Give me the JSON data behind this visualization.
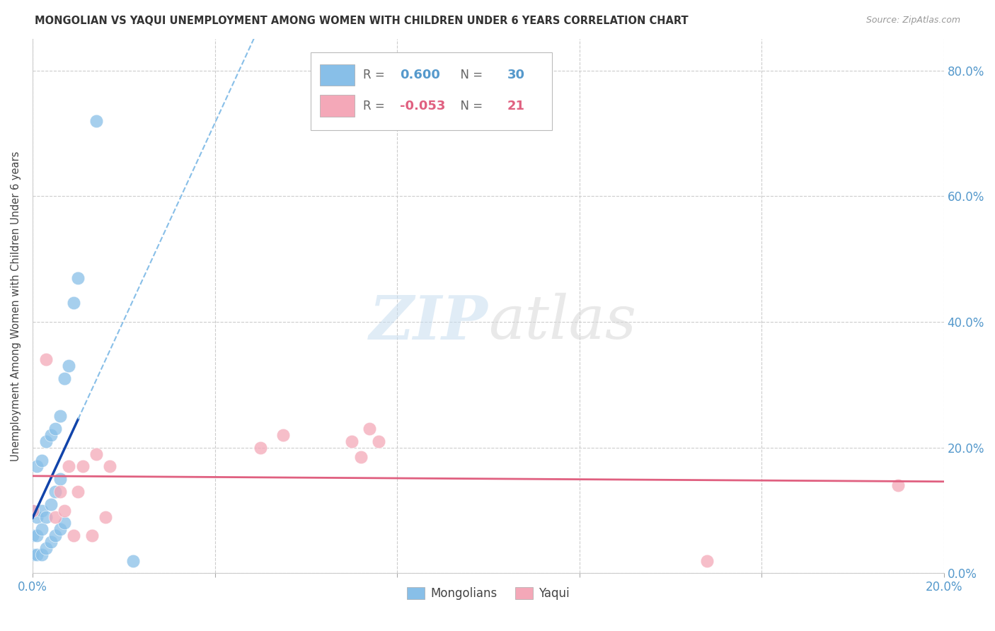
{
  "title": "MONGOLIAN VS YAQUI UNEMPLOYMENT AMONG WOMEN WITH CHILDREN UNDER 6 YEARS CORRELATION CHART",
  "source": "Source: ZipAtlas.com",
  "ylabel": "Unemployment Among Women with Children Under 6 years",
  "xlim": [
    0.0,
    0.2
  ],
  "ylim": [
    0.0,
    0.85
  ],
  "mongolian_color": "#88bfe8",
  "yaqui_color": "#f4a8b8",
  "mongolian_line_color": "#1144aa",
  "mongolian_dash_color": "#88bfe8",
  "yaqui_line_color": "#e06080",
  "mongolian_R": 0.6,
  "mongolian_N": 30,
  "yaqui_R": -0.053,
  "yaqui_N": 21,
  "mongolian_x": [
    0.0,
    0.0,
    0.0,
    0.001,
    0.001,
    0.001,
    0.001,
    0.002,
    0.002,
    0.002,
    0.002,
    0.003,
    0.003,
    0.003,
    0.004,
    0.004,
    0.004,
    0.005,
    0.005,
    0.005,
    0.006,
    0.006,
    0.006,
    0.007,
    0.007,
    0.008,
    0.009,
    0.01,
    0.014,
    0.022
  ],
  "mongolian_y": [
    0.03,
    0.06,
    0.1,
    0.03,
    0.06,
    0.09,
    0.17,
    0.03,
    0.07,
    0.1,
    0.18,
    0.04,
    0.09,
    0.21,
    0.05,
    0.11,
    0.22,
    0.06,
    0.13,
    0.23,
    0.07,
    0.15,
    0.25,
    0.08,
    0.31,
    0.33,
    0.43,
    0.47,
    0.72,
    0.02
  ],
  "yaqui_x": [
    0.0,
    0.003,
    0.005,
    0.006,
    0.007,
    0.008,
    0.009,
    0.01,
    0.011,
    0.013,
    0.014,
    0.016,
    0.017,
    0.05,
    0.055,
    0.07,
    0.072,
    0.074,
    0.076,
    0.148,
    0.19
  ],
  "yaqui_y": [
    0.1,
    0.34,
    0.09,
    0.13,
    0.1,
    0.17,
    0.06,
    0.13,
    0.17,
    0.06,
    0.19,
    0.09,
    0.17,
    0.2,
    0.22,
    0.21,
    0.185,
    0.23,
    0.21,
    0.02,
    0.14
  ],
  "background_color": "#ffffff",
  "grid_color": "#cccccc",
  "watermark_zip": "ZIP",
  "watermark_atlas": "atlas",
  "tick_color": "#5599cc"
}
